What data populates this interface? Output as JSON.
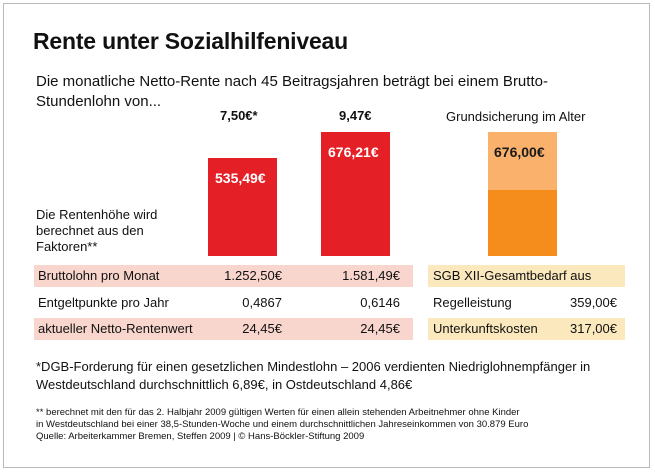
{
  "header": {
    "title": "Rente unter Sozialhilfeniveau",
    "subtitle": "Die monatliche Netto-Rente nach 45 Beitragsjahren beträgt bei einem Brutto-Stundenlohn von..."
  },
  "side_note": "Die Rentenhöhe wird berechnet aus den Faktoren**",
  "chart_data": {
    "type": "bar",
    "categories": [
      "7,50€*",
      "9,47€",
      "Grundsicherung im Alter"
    ],
    "values": [
      535.49,
      676.21,
      676.0
    ],
    "value_labels": [
      "535,49€",
      "676,21€",
      "676,00€"
    ],
    "grundsicherung_components": {
      "regelleistung": 359.0,
      "unterkunftskosten": 317.0
    },
    "colors": {
      "rente": "#e51f26",
      "grundsicherung_top": "#f9b16b",
      "grundsicherung_bottom": "#f58d1c"
    },
    "ylim": [
      0,
      676.21
    ]
  },
  "table": {
    "rows": [
      {
        "label": "Bruttolohn pro Monat",
        "col1": "1.252,50€",
        "col2": "1.581,49€"
      },
      {
        "label": "Entgeltpunkte pro Jahr",
        "col1": "0,4867",
        "col2": "0,6146"
      },
      {
        "label": "aktueller Netto-Rentenwert",
        "col1": "24,45€",
        "col2": "24,45€"
      }
    ],
    "right": [
      {
        "label": "SGB XII-Gesamtbedarf aus",
        "value": ""
      },
      {
        "label": "Regelleistung",
        "value": "359,00€"
      },
      {
        "label": "Unterkunftskosten",
        "value": "317,00€"
      }
    ]
  },
  "footnotes": {
    "star": "*DGB-Forderung für einen gesetzlichen Mindestlohn – 2006 verdienten Niedriglohnempfänger in Westdeutschland durchschnittlich 6,89€, in Ostdeutschland 4,86€",
    "double_star_line1": "** berechnet mit den für das 2. Halbjahr 2009 gültigen Werten für einen allein stehenden Arbeitnehmer ohne Kinder",
    "double_star_line2": "in Westdeutschland bei einer 38,5-Stunden-Woche und einem durchschnittlichen Jahreseinkommen von 30.879 Euro",
    "source": "Quelle: Arbeiterkammer Bremen, Steffen 2009 | © Hans-Böckler-Stiftung 2009"
  }
}
